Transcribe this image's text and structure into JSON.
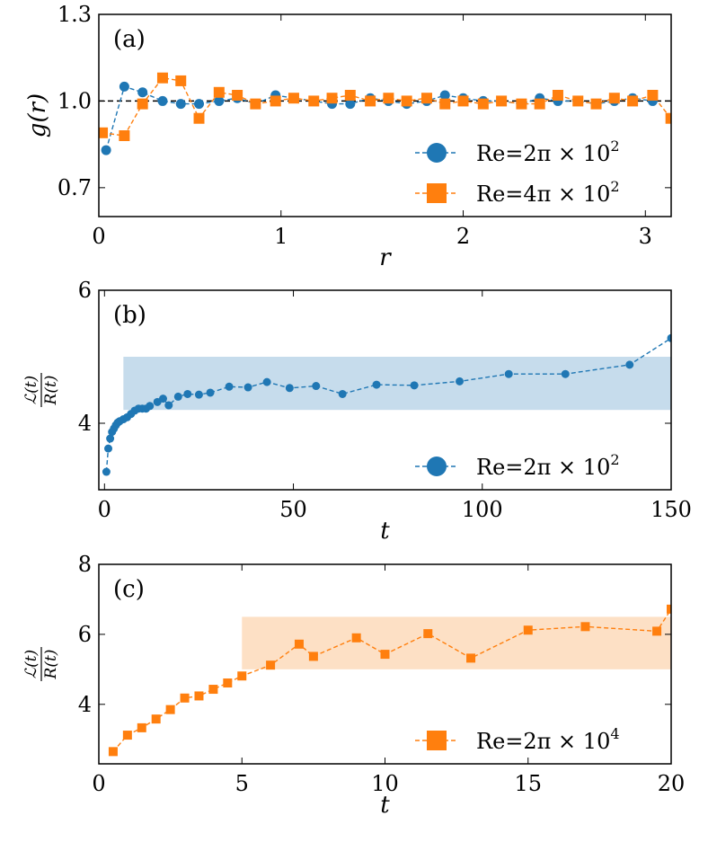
{
  "colors": {
    "blue": "#1f77b4",
    "orange": "#ff7f0e",
    "blue_band": "#c6dcec",
    "orange_band": "#fde0c5"
  },
  "chart_data": [
    {
      "type": "line",
      "panel_label": "(a)",
      "xlabel": "r",
      "ylabel": "g(r)",
      "xlim": [
        0,
        3.1416
      ],
      "ylim": [
        0.6,
        1.3
      ],
      "xticks": [
        0,
        1,
        2,
        3
      ],
      "xtick_labels": [
        "0",
        "1",
        "2",
        "3"
      ],
      "yticks": [
        0.7,
        1.0,
        1.3
      ],
      "ytick_labels": [
        "0.7",
        "1.0",
        "1.3"
      ],
      "reference_line": {
        "y": 1.0,
        "style": "dashed",
        "color": "#000000"
      },
      "legend_position": "lower-right",
      "series": [
        {
          "name": "Re=2π × 10²",
          "legend_text": "Re=2π × 10",
          "legend_exp": "2",
          "marker": "circle",
          "color": "#1f77b4",
          "x": [
            0.04,
            0.14,
            0.24,
            0.35,
            0.45,
            0.55,
            0.66,
            0.76,
            0.86,
            0.97,
            1.07,
            1.18,
            1.28,
            1.38,
            1.49,
            1.59,
            1.69,
            1.8,
            1.9,
            2.0,
            2.11,
            2.21,
            2.32,
            2.42,
            2.52,
            2.63,
            2.73,
            2.83,
            2.93,
            3.04
          ],
          "y": [
            0.83,
            1.05,
            1.03,
            1.0,
            0.99,
            0.99,
            1.0,
            1.01,
            0.99,
            1.02,
            1.01,
            1.0,
            0.99,
            0.99,
            1.01,
            1.0,
            0.99,
            1.0,
            1.02,
            1.01,
            1.0,
            1.0,
            0.99,
            1.01,
            1.0,
            1.0,
            0.99,
            1.0,
            1.01,
            1.0
          ]
        },
        {
          "name": "Re=4π × 10²",
          "legend_text": "Re=4π × 10",
          "legend_exp": "2",
          "marker": "square",
          "color": "#ff7f0e",
          "x": [
            0.02,
            0.14,
            0.24,
            0.35,
            0.45,
            0.55,
            0.66,
            0.76,
            0.86,
            0.97,
            1.07,
            1.18,
            1.28,
            1.38,
            1.49,
            1.59,
            1.69,
            1.8,
            1.9,
            2.0,
            2.11,
            2.21,
            2.32,
            2.42,
            2.52,
            2.63,
            2.73,
            2.83,
            2.93,
            3.04,
            3.14
          ],
          "y": [
            0.89,
            0.88,
            0.99,
            1.08,
            1.07,
            0.94,
            1.03,
            1.02,
            0.99,
            1.0,
            1.01,
            1.0,
            1.01,
            1.02,
            1.0,
            1.01,
            1.0,
            1.01,
            0.99,
            1.0,
            0.99,
            1.0,
            0.99,
            0.99,
            1.02,
            1.0,
            0.99,
            1.01,
            1.0,
            1.02,
            0.94
          ]
        }
      ]
    },
    {
      "type": "line",
      "panel_label": "(b)",
      "xlabel": "t",
      "ylabel": "L(t)/R(t)",
      "ylabel_num": "ℒ(t)",
      "ylabel_den": "R(t)",
      "xlim": [
        -1.5,
        150
      ],
      "ylim": [
        3.0,
        6.0
      ],
      "xticks": [
        0,
        50,
        100,
        150
      ],
      "xtick_labels": [
        "0",
        "50",
        "100",
        "150"
      ],
      "yticks": [
        4,
        6
      ],
      "ytick_labels": [
        "4",
        "6"
      ],
      "shaded_band": {
        "x0": 5,
        "x1": 150,
        "y0": 4.2,
        "y1": 5.0,
        "color": "#c6dcec"
      },
      "legend_position": "lower-right",
      "series": [
        {
          "name": "Re=2π × 10²",
          "legend_text": "Re=2π × 10",
          "legend_exp": "2",
          "marker": "circle",
          "color": "#1f77b4",
          "x": [
            0.5,
            1.0,
            1.5,
            2.0,
            2.5,
            3.0,
            3.5,
            4.0,
            5.0,
            6.0,
            7.0,
            8.0,
            9.0,
            10.0,
            11.0,
            12.0,
            14.0,
            15.5,
            17.0,
            19.5,
            22.0,
            25.0,
            28.0,
            33.0,
            38.0,
            43.0,
            49.0,
            56.0,
            63.0,
            72.0,
            82.0,
            94.0,
            107.0,
            122.0,
            139.0,
            150.0
          ],
          "y": [
            3.27,
            3.62,
            3.77,
            3.87,
            3.92,
            3.97,
            4.01,
            4.03,
            4.06,
            4.09,
            4.14,
            4.19,
            4.22,
            4.22,
            4.22,
            4.26,
            4.32,
            4.37,
            4.27,
            4.4,
            4.44,
            4.43,
            4.46,
            4.55,
            4.54,
            4.62,
            4.53,
            4.56,
            4.44,
            4.58,
            4.57,
            4.63,
            4.74,
            4.74,
            4.88,
            5.28
          ]
        }
      ]
    },
    {
      "type": "line",
      "panel_label": "(c)",
      "xlabel": "t",
      "ylabel": "L(t)/R(t)",
      "ylabel_num": "ℒ(t)",
      "ylabel_den": "R(t)",
      "xlim": [
        0,
        20
      ],
      "ylim": [
        2.3,
        8.0
      ],
      "xticks": [
        0,
        5,
        10,
        15,
        20
      ],
      "xtick_labels": [
        "0",
        "5",
        "10",
        "15",
        "20"
      ],
      "yticks": [
        4,
        6,
        8
      ],
      "ytick_labels": [
        "4",
        "6",
        "8"
      ],
      "shaded_band": {
        "x0": 5,
        "x1": 20,
        "y0": 5.0,
        "y1": 6.5,
        "color": "#fde0c5"
      },
      "legend_position": "lower-right",
      "series": [
        {
          "name": "Re=2π × 10⁴",
          "legend_text": "Re=2π × 10",
          "legend_exp": "4",
          "marker": "square",
          "color": "#ff7f0e",
          "x": [
            0.5,
            1.0,
            1.5,
            2.0,
            2.5,
            3.0,
            3.5,
            4.0,
            4.5,
            5.0,
            6.0,
            7.0,
            7.5,
            9.0,
            10.0,
            11.5,
            13.0,
            15.0,
            17.0,
            19.5,
            20.0
          ],
          "y": [
            2.65,
            3.12,
            3.33,
            3.58,
            3.85,
            4.18,
            4.24,
            4.43,
            4.61,
            4.81,
            5.12,
            5.72,
            5.37,
            5.9,
            5.43,
            6.02,
            5.32,
            6.12,
            6.22,
            6.09,
            6.72
          ]
        }
      ]
    }
  ]
}
